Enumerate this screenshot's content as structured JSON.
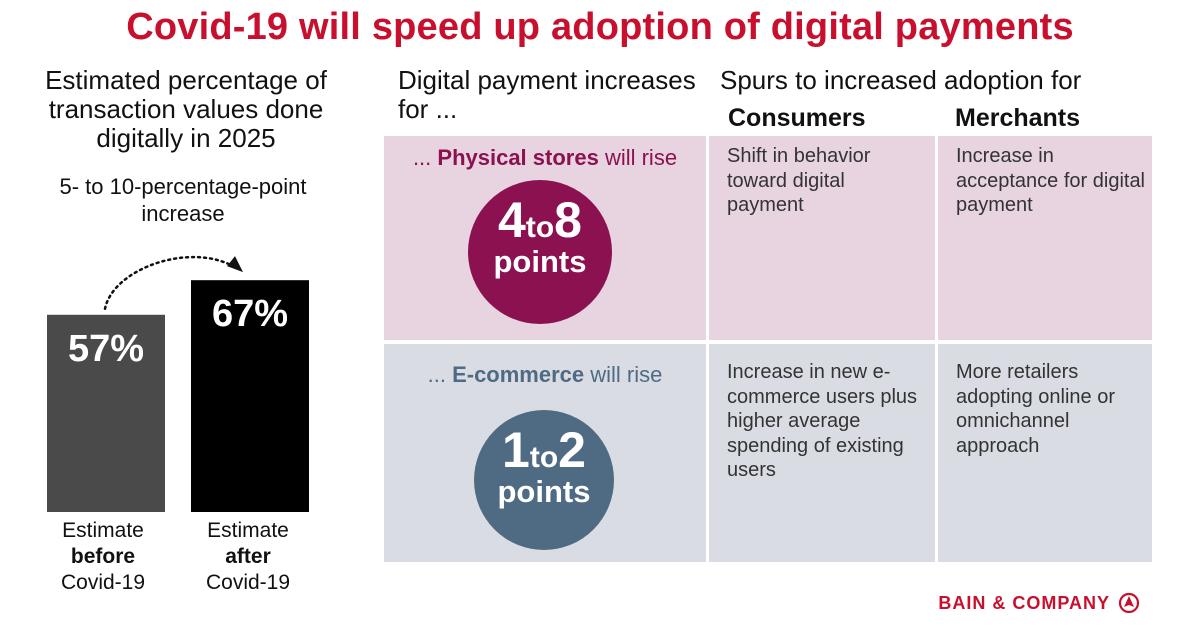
{
  "title": "Covid-19 will speed up adoption of digital payments",
  "left_panel": {
    "heading": "Estimated percentage of transaction values done digitally in 2025",
    "increase_note": "5- to 10-percentage-point increase",
    "bars": [
      {
        "line1": "Estimate",
        "line2": "before",
        "line3": "Covid-19",
        "value_label": "57%"
      },
      {
        "line1": "Estimate",
        "line2": "after",
        "line3": "Covid-19",
        "value_label": "67%"
      }
    ]
  },
  "chart_data": {
    "type": "bar",
    "categories": [
      "Estimate before Covid-19",
      "Estimate after Covid-19"
    ],
    "values": [
      57,
      67
    ],
    "colors": [
      "#4a4a4a",
      "#000000"
    ],
    "unit": "%",
    "annotation": "5- to 10-percentage-point increase"
  },
  "middle": {
    "heading": "Digital payment increases for ...",
    "rows": [
      {
        "prefix": "... ",
        "strong": "Physical stores",
        "suffix": " will rise",
        "range_low": "4",
        "range_to": "to",
        "range_high": "8",
        "unit": "points",
        "color": "#8c1150"
      },
      {
        "prefix": "... ",
        "strong": "E-commerce",
        "suffix": " will rise",
        "range_low": "1",
        "range_to": "to",
        "range_high": "2",
        "unit": "points",
        "color": "#4f6b84"
      }
    ]
  },
  "spurs": {
    "heading": "Spurs to increased adoption for",
    "col_consumers": "Consumers",
    "col_merchants": "Merchants",
    "physical_consumers": "Shift in behavior toward digital payment",
    "physical_merchants": "Increase in acceptance for digital payment",
    "ecommerce_consumers": "Increase in new e-commerce users plus higher average spending of existing users",
    "ecommerce_merchants": "More retailers adopting online or omnichannel approach"
  },
  "logo": {
    "text": "BAIN & COMPANY",
    "icon": "bain-compass-icon",
    "color": "#c8102e"
  }
}
